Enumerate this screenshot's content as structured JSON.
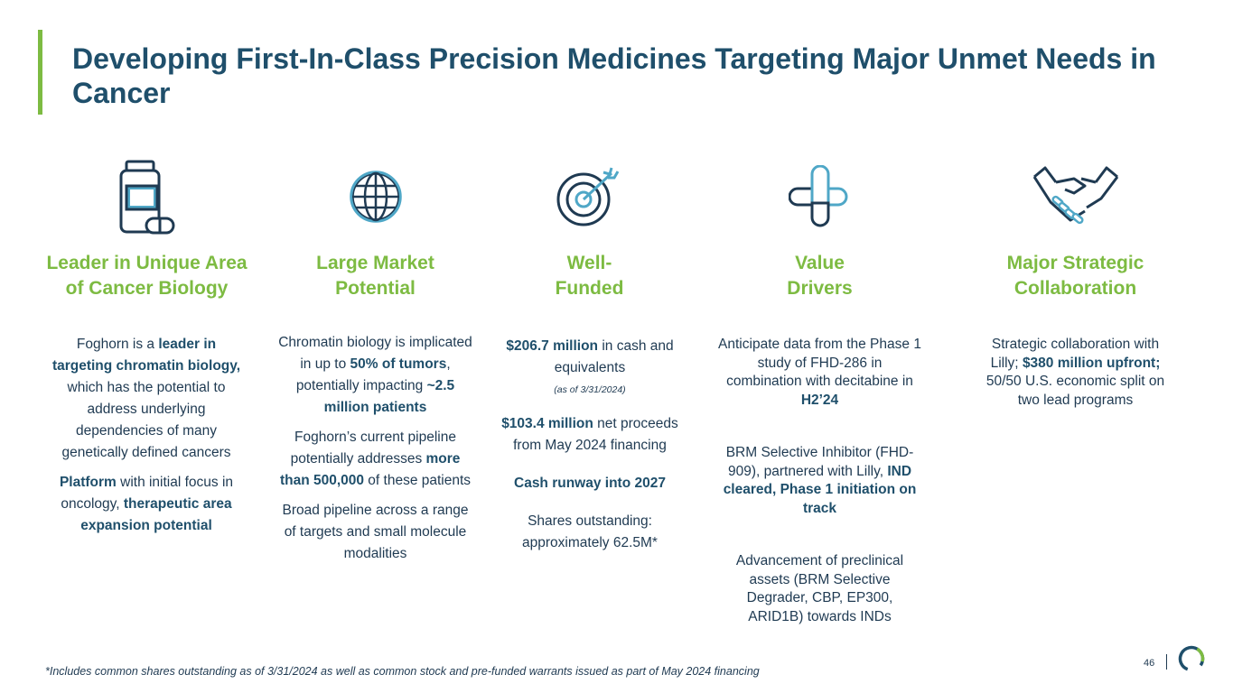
{
  "title": "Developing First-In-Class Precision Medicines Targeting Major Unmet Needs in Cancer",
  "columns": [
    {
      "icon": "pill-bottle-icon",
      "heading_line1": "Leader in Unique Area",
      "heading_line2": "of Cancer Biology",
      "p1": {
        "a": "Foghorn is a ",
        "b": "leader in targeting chromatin biology,",
        "c": " which has the potential to address underlying dependencies of many genetically defined cancers"
      },
      "p2": {
        "a": "Platform",
        "b": " with initial focus in oncology, ",
        "c": "therapeutic area expansion potential"
      }
    },
    {
      "icon": "globe-icon",
      "heading_line1": "Large Market",
      "heading_line2": "Potential",
      "p1": {
        "a": "Chromatin biology is implicated in up to ",
        "b": "50% of tumors",
        "c": ", potentially impacting ",
        "d": "~2.5 million patients"
      },
      "p2": {
        "a": "Foghorn’s current pipeline potentially addresses ",
        "b": "more than 500,000",
        "c": " of these patients"
      },
      "p3": "Broad pipeline across a range of targets and small molecule modalities"
    },
    {
      "icon": "target-icon",
      "heading_line1": "Well-",
      "heading_line2": "Funded",
      "p1": {
        "a": "$206.7 million",
        "b": " in cash and equivalents"
      },
      "note": "(as of 3/31/2024)",
      "p2": {
        "a": "$103.4 million",
        "b": " net proceeds from May 2024 financing"
      },
      "p3": "Cash runway into 2027",
      "p4": "Shares outstanding: approximately 62.5M*"
    },
    {
      "icon": "capsule-cross-icon",
      "heading_line1": "Value",
      "heading_line2": "Drivers",
      "p1": {
        "a": "Anticipate data from the Phase 1 study of FHD-286 in combination with decitabine in ",
        "b": "H2’24"
      },
      "p2": {
        "a": "BRM Selective Inhibitor (FHD-909), partnered with Lilly, ",
        "b": "IND cleared, Phase 1 initiation on track"
      },
      "p3": "Advancement of preclinical assets (BRM Selective Degrader, CBP, EP300, ARID1B) towards INDs"
    },
    {
      "icon": "handshake-icon",
      "heading_line1": "Major Strategic",
      "heading_line2": "Collaboration",
      "p1": {
        "a": "Strategic collaboration with Lilly; ",
        "b": "$380 million upfront;",
        "c": " 50/50 U.S. economic split on two lead programs"
      }
    }
  ],
  "footnote": "*Includes common shares outstanding as of 3/31/2024 as well as common stock and pre-funded warrants issued as part of May 2024 financing",
  "page_number": "46",
  "colors": {
    "navy": "#1f4f6b",
    "green": "#7dbb42",
    "teal": "#4fa7c7",
    "text": "#1f3a52"
  }
}
